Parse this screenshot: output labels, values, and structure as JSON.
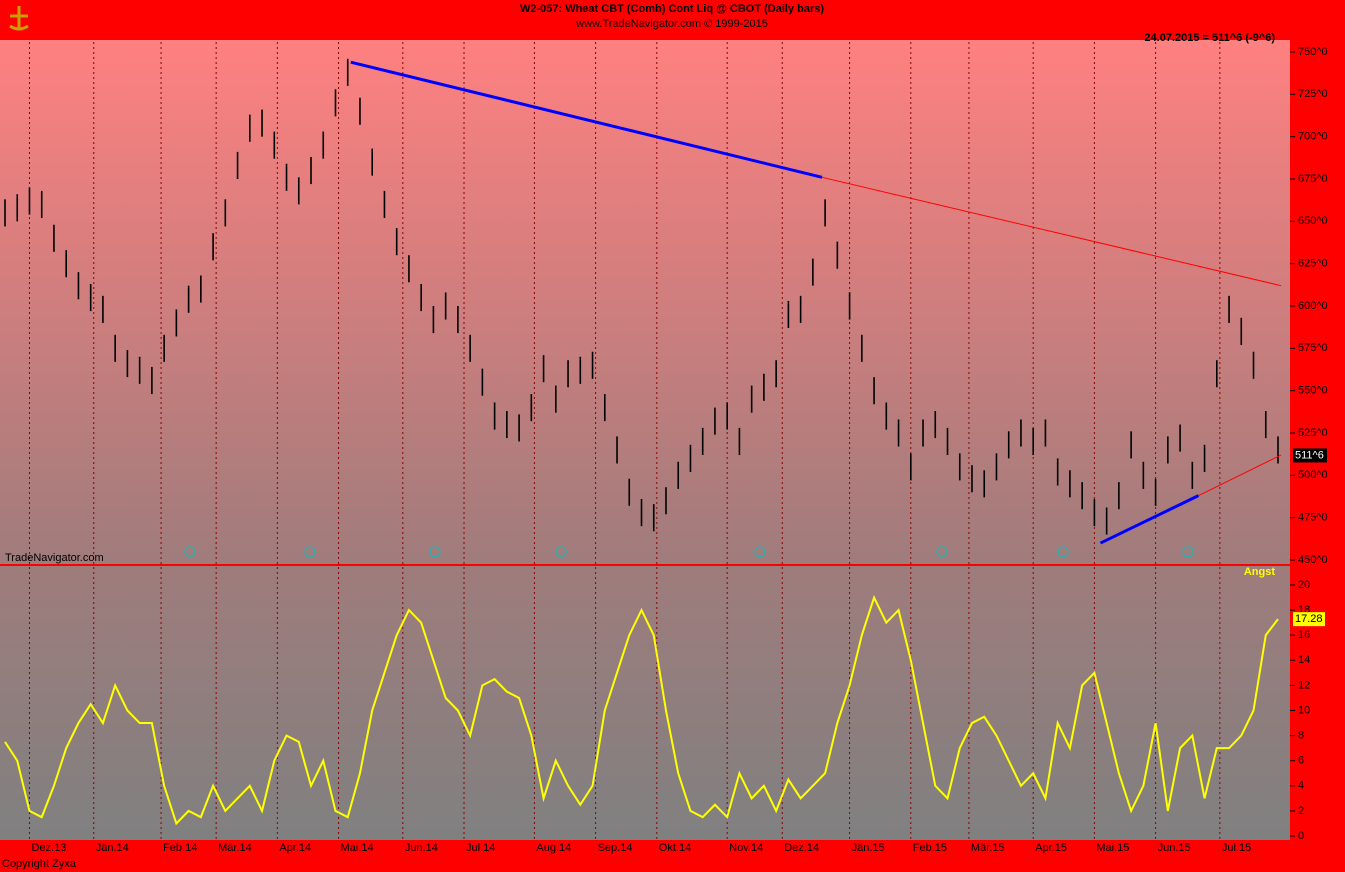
{
  "chart_data": [
    {
      "type": "hilo",
      "title": "W2-057:  Wheat CBT (Comb) Cont Liq @ CBOT  (Daily bars)",
      "subtitle": "www.TradeNavigator.com © 1999-2015",
      "info": "24.07.2015 = 511^6 (-9^6)",
      "watermark": "TradeNavigator.com",
      "color": "#000000",
      "xlim": [
        0,
        416
      ],
      "ylim": [
        450,
        750
      ],
      "yticks": [
        {
          "value": 450,
          "label": "450^0"
        },
        {
          "value": 475,
          "label": "475^0"
        },
        {
          "value": 500,
          "label": "500^0"
        },
        {
          "value": 525,
          "label": "525^0"
        },
        {
          "value": 550,
          "label": "550^0"
        },
        {
          "value": 575,
          "label": "575^0"
        },
        {
          "value": 600,
          "label": "600^0"
        },
        {
          "value": 625,
          "label": "625^0"
        },
        {
          "value": 650,
          "label": "650^0"
        },
        {
          "value": 675,
          "label": "675^0"
        },
        {
          "value": 700,
          "label": "700^0"
        },
        {
          "value": 725,
          "label": "725^0"
        },
        {
          "value": 750,
          "label": "750^0"
        }
      ],
      "x": [
        0,
        4,
        8,
        12,
        16,
        20,
        24,
        28,
        32,
        36,
        40,
        44,
        48,
        52,
        56,
        60,
        64,
        68,
        72,
        76,
        80,
        84,
        88,
        92,
        96,
        100,
        104,
        108,
        112,
        116,
        120,
        124,
        128,
        132,
        136,
        140,
        144,
        148,
        152,
        156,
        160,
        164,
        168,
        172,
        176,
        180,
        184,
        188,
        192,
        196,
        200,
        204,
        208,
        212,
        216,
        220,
        224,
        228,
        232,
        236,
        240,
        244,
        248,
        252,
        256,
        260,
        264,
        268,
        272,
        276,
        280,
        284,
        288,
        292,
        296,
        300,
        304,
        308,
        312,
        316,
        320,
        324,
        328,
        332,
        336,
        340,
        344,
        348,
        352,
        356,
        360,
        364,
        368,
        372,
        376,
        380,
        384,
        388,
        392,
        396,
        400,
        404,
        408,
        412,
        416
      ],
      "high": [
        663,
        666,
        670,
        668,
        648,
        633,
        620,
        613,
        606,
        583,
        574,
        570,
        564,
        583,
        598,
        612,
        618,
        643,
        663,
        691,
        713,
        716,
        703,
        684,
        676,
        688,
        703,
        728,
        746,
        723,
        693,
        668,
        646,
        630,
        613,
        600,
        608,
        600,
        583,
        563,
        543,
        538,
        536,
        548,
        571,
        553,
        568,
        570,
        573,
        548,
        523,
        498,
        486,
        483,
        493,
        508,
        518,
        528,
        540,
        543,
        528,
        553,
        560,
        568,
        603,
        606,
        628,
        663,
        638,
        608,
        583,
        558,
        543,
        533,
        513,
        533,
        538,
        528,
        513,
        506,
        503,
        513,
        526,
        533,
        528,
        533,
        510,
        503,
        496,
        486,
        481,
        496,
        526,
        508,
        498,
        523,
        530,
        508,
        518,
        568,
        606,
        593,
        573,
        538,
        523
      ],
      "low": [
        647,
        650,
        654,
        652,
        632,
        617,
        604,
        597,
        590,
        567,
        558,
        554,
        548,
        567,
        582,
        596,
        602,
        627,
        647,
        675,
        697,
        700,
        687,
        668,
        660,
        672,
        687,
        712,
        730,
        707,
        677,
        652,
        630,
        614,
        597,
        584,
        592,
        584,
        567,
        547,
        527,
        522,
        520,
        532,
        555,
        537,
        552,
        554,
        557,
        532,
        507,
        482,
        470,
        467,
        477,
        492,
        502,
        512,
        524,
        527,
        512,
        537,
        544,
        552,
        587,
        590,
        612,
        647,
        622,
        592,
        567,
        542,
        527,
        517,
        497,
        517,
        522,
        512,
        497,
        490,
        487,
        497,
        510,
        517,
        512,
        517,
        494,
        487,
        480,
        470,
        465,
        480,
        510,
        492,
        482,
        507,
        514,
        492,
        502,
        552,
        590,
        577,
        557,
        522,
        507
      ],
      "last": {
        "value": 511.75,
        "label": "511^6"
      },
      "trendlines": [
        {
          "color": "#0000ff",
          "x": [
            113,
            267
          ],
          "y": [
            744,
            676
          ]
        },
        {
          "color": "#ff0000",
          "x": [
            267,
            417
          ],
          "y": [
            676,
            612
          ]
        },
        {
          "color": "#0000ff",
          "x": [
            358,
            390
          ],
          "y": [
            460,
            488
          ]
        },
        {
          "color": "#ff0000",
          "x": [
            390,
            417
          ],
          "y": [
            488,
            512
          ]
        }
      ]
    },
    {
      "type": "line",
      "name": "Angst",
      "color": "#ffff00",
      "xlim": [
        0,
        416
      ],
      "ylim": [
        0,
        20
      ],
      "yticks": [
        0,
        2,
        4,
        6,
        8,
        10,
        12,
        14,
        16,
        18,
        20
      ],
      "xticks": [
        {
          "value": 8,
          "label": "Dez.13"
        },
        {
          "value": 29,
          "label": "Jän.14"
        },
        {
          "value": 51,
          "label": "Feb.14"
        },
        {
          "value": 69,
          "label": "Mär.14"
        },
        {
          "value": 89,
          "label": "Apr.14"
        },
        {
          "value": 109,
          "label": "Mai.14"
        },
        {
          "value": 130,
          "label": "Jun.14"
        },
        {
          "value": 150,
          "label": "Jul.14"
        },
        {
          "value": 173,
          "label": "Aug.14"
        },
        {
          "value": 193,
          "label": "Sep.14"
        },
        {
          "value": 213,
          "label": "Okt.14"
        },
        {
          "value": 236,
          "label": "Nov.14"
        },
        {
          "value": 254,
          "label": "Dez.14"
        },
        {
          "value": 276,
          "label": "Jän.15"
        },
        {
          "value": 296,
          "label": "Feb.15"
        },
        {
          "value": 315,
          "label": "Mär.15"
        },
        {
          "value": 336,
          "label": "Apr.15"
        },
        {
          "value": 356,
          "label": "Mai.15"
        },
        {
          "value": 376,
          "label": "Jun.15"
        },
        {
          "value": 397,
          "label": "Jul.15"
        }
      ],
      "x": [
        0,
        4,
        8,
        12,
        16,
        20,
        24,
        28,
        32,
        36,
        40,
        44,
        48,
        52,
        56,
        60,
        64,
        68,
        72,
        76,
        80,
        84,
        88,
        92,
        96,
        100,
        104,
        108,
        112,
        116,
        120,
        124,
        128,
        132,
        136,
        140,
        144,
        148,
        152,
        156,
        160,
        164,
        168,
        172,
        176,
        180,
        184,
        188,
        192,
        196,
        200,
        204,
        208,
        212,
        216,
        220,
        224,
        228,
        232,
        236,
        240,
        244,
        248,
        252,
        256,
        260,
        264,
        268,
        272,
        276,
        280,
        284,
        288,
        292,
        296,
        300,
        304,
        308,
        312,
        316,
        320,
        324,
        328,
        332,
        336,
        340,
        344,
        348,
        352,
        356,
        360,
        364,
        368,
        372,
        376,
        380,
        384,
        388,
        392,
        396,
        400,
        404,
        408,
        412,
        416
      ],
      "values": [
        7.5,
        6,
        2,
        1.5,
        4,
        7,
        9,
        10.5,
        9,
        12,
        10,
        9,
        9,
        4,
        1,
        2,
        1.5,
        4,
        2,
        3,
        4,
        2,
        6,
        8,
        7.5,
        4,
        6,
        2,
        1.5,
        5,
        10,
        13,
        16,
        18,
        17,
        14,
        11,
        10,
        8,
        12,
        12.5,
        11.5,
        11,
        8,
        3,
        6,
        4,
        2.5,
        4,
        10,
        13,
        16,
        18,
        16,
        10,
        5,
        2,
        1.5,
        2.5,
        1.5,
        5,
        3,
        4,
        2,
        4.5,
        3,
        4,
        5,
        9,
        12,
        16,
        19,
        17,
        18,
        14,
        9,
        4,
        3,
        7,
        9,
        9.5,
        8,
        6,
        4,
        5,
        3,
        9,
        7,
        12,
        13,
        9,
        5,
        2,
        4,
        9,
        2,
        7,
        8,
        3,
        7,
        7,
        8,
        10,
        16,
        17.28
      ]
    },
    {
      "copyright": "Copyright Zyxa"
    }
  ]
}
